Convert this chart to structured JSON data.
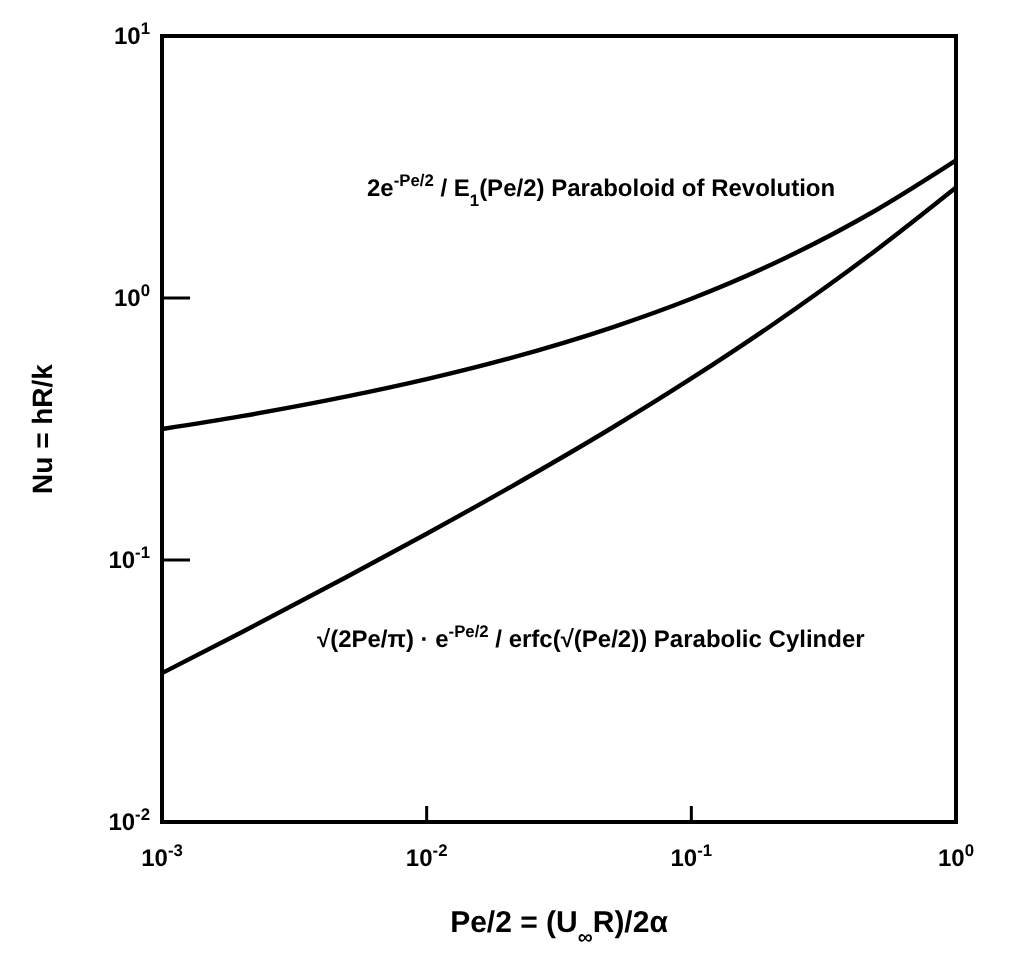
{
  "chart_data": {
    "type": "line",
    "xlabel": "Pe/2 = (U$_{∞}$R)/2α",
    "ylabel": "Nu = hR/k",
    "log": "xy",
    "xlim": [
      0.001,
      1
    ],
    "ylim": [
      0.01,
      10
    ],
    "xticks": [
      {
        "value": 0.001,
        "label": "10$^{-3}$"
      },
      {
        "value": 0.01,
        "label": "10$^{-2}$"
      },
      {
        "value": 0.1,
        "label": "10$^{-1}$"
      },
      {
        "value": 1,
        "label": "10$^{0}$"
      }
    ],
    "yticks": [
      {
        "value": 0.01,
        "label": "10$^{-2}$"
      },
      {
        "value": 0.1,
        "label": "10$^{-1}$"
      },
      {
        "value": 1,
        "label": "10$^{0}$"
      },
      {
        "value": 10,
        "label": "10$^{1}$"
      }
    ],
    "line_style": "solid",
    "marker": "none",
    "x": [
      0.001,
      0.002,
      0.005,
      0.01,
      0.02,
      0.05,
      0.1,
      0.2,
      0.5,
      1
    ],
    "series": [
      {
        "name": "2e$^{-Pe/2}$ / E$_{1}$(Pe/2)  Paraboloid of Revolution",
        "color": "#000000",
        "values": [
          0.316,
          0.354,
          0.421,
          0.49,
          0.584,
          0.771,
          0.993,
          1.339,
          2.167,
          3.35
        ]
      },
      {
        "name": "√(2Pe/π) · e$^{-Pe/2}$ / erfc(√(Pe/2))  Parabolic Cylinder",
        "color": "#000000",
        "values": [
          0.037,
          0.053,
          0.0863,
          0.126,
          0.186,
          0.319,
          0.493,
          0.784,
          1.525,
          2.64
        ]
      }
    ]
  }
}
